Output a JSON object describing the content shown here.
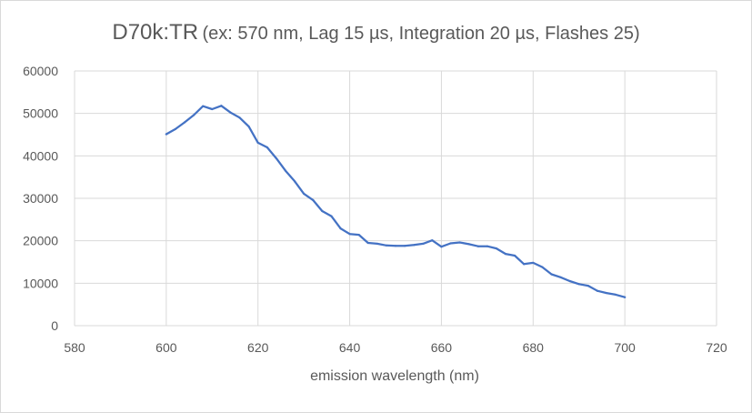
{
  "chart_data": {
    "type": "line",
    "title": "D70k:TR",
    "subtitle": "(ex: 570 nm, Lag 15 µs, Integration 20 µs, Flashes 25)",
    "xlabel": "emission wavelength (nm)",
    "ylabel": "",
    "xlim": [
      580,
      720
    ],
    "ylim": [
      0,
      60000
    ],
    "x_ticks": [
      580,
      600,
      620,
      640,
      660,
      680,
      700,
      720
    ],
    "y_ticks": [
      0,
      10000,
      20000,
      30000,
      40000,
      50000,
      60000
    ],
    "grid": true,
    "legend": "none",
    "series": [
      {
        "color": "#4472c4",
        "x": [
          600,
          602,
          604,
          606,
          608,
          610,
          612,
          614,
          616,
          618,
          620,
          622,
          624,
          626,
          628,
          630,
          632,
          634,
          636,
          638,
          640,
          642,
          644,
          646,
          648,
          650,
          652,
          654,
          656,
          658,
          660,
          662,
          664,
          666,
          668,
          670,
          672,
          674,
          676,
          678,
          680,
          682,
          684,
          686,
          688,
          690,
          692,
          694,
          696,
          698,
          700
        ],
        "y": [
          45100,
          46300,
          47900,
          49600,
          51700,
          51000,
          51800,
          50200,
          49000,
          46900,
          43100,
          42000,
          39400,
          36500,
          34000,
          31100,
          29600,
          27000,
          25800,
          22900,
          21600,
          21400,
          19500,
          19300,
          18900,
          18800,
          18800,
          19000,
          19300,
          20100,
          18600,
          19400,
          19600,
          19200,
          18700,
          18700,
          18200,
          16900,
          16500,
          14500,
          14800,
          13800,
          12100,
          11400,
          10500,
          9800,
          9400,
          8200,
          7700,
          7300,
          6700
        ]
      }
    ]
  }
}
